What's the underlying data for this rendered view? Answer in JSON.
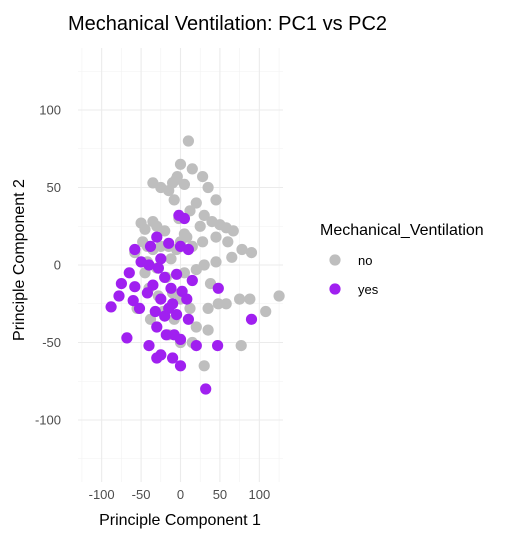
{
  "chart_data": {
    "type": "scatter",
    "title": "Mechanical Ventilation: PC1 vs PC2",
    "xlabel": "Principle Component 1",
    "ylabel": "Principle Component 2",
    "xlim": [
      -130,
      130
    ],
    "ylim": [
      -140,
      140
    ],
    "xticks": [
      -100,
      -50,
      0,
      50,
      100
    ],
    "xtick_labels": [
      "-100",
      "-50",
      "0",
      "50",
      "100"
    ],
    "yticks": [
      -100,
      -50,
      0,
      50,
      100
    ],
    "ytick_labels": [
      "-100",
      "-50",
      "0",
      "50",
      "100"
    ],
    "grid": true,
    "legend": {
      "title": "Mechanical_Ventilation",
      "position": "right"
    },
    "series": [
      {
        "name": "no",
        "color": "#bebebe",
        "points": [
          [
            10,
            80
          ],
          [
            0,
            65
          ],
          [
            -6,
            55
          ],
          [
            -10,
            53
          ],
          [
            -4,
            57
          ],
          [
            -35,
            53
          ],
          [
            -25,
            50
          ],
          [
            15,
            62
          ],
          [
            28,
            57
          ],
          [
            35,
            50
          ],
          [
            5,
            52
          ],
          [
            -15,
            48
          ],
          [
            -8,
            42
          ],
          [
            20,
            40
          ],
          [
            45,
            42
          ],
          [
            12,
            35
          ],
          [
            30,
            32
          ],
          [
            -50,
            27
          ],
          [
            -35,
            28
          ],
          [
            -2,
            30
          ],
          [
            25,
            25
          ],
          [
            40,
            28
          ],
          [
            -45,
            23
          ],
          [
            -30,
            25
          ],
          [
            -20,
            22
          ],
          [
            5,
            20
          ],
          [
            50,
            26
          ],
          [
            58,
            24
          ],
          [
            67,
            22
          ],
          [
            -48,
            15
          ],
          [
            -42,
            12
          ],
          [
            -35,
            10
          ],
          [
            -25,
            12
          ],
          [
            -15,
            12
          ],
          [
            -5,
            10
          ],
          [
            0,
            15
          ],
          [
            8,
            18
          ],
          [
            15,
            12
          ],
          [
            28,
            15
          ],
          [
            45,
            18
          ],
          [
            60,
            15
          ],
          [
            78,
            10
          ],
          [
            90,
            8
          ],
          [
            -58,
            8
          ],
          [
            -45,
            -5
          ],
          [
            -30,
            -2
          ],
          [
            -18,
            -8
          ],
          [
            5,
            -5
          ],
          [
            20,
            -3
          ],
          [
            30,
            0
          ],
          [
            45,
            2
          ],
          [
            65,
            5
          ],
          [
            -40,
            -15
          ],
          [
            -28,
            -20
          ],
          [
            -10,
            -18
          ],
          [
            0,
            -22
          ],
          [
            12,
            -28
          ],
          [
            35,
            -28
          ],
          [
            48,
            -25
          ],
          [
            58,
            -25
          ],
          [
            75,
            -22
          ],
          [
            88,
            -22
          ],
          [
            108,
            -30
          ],
          [
            125,
            -20
          ],
          [
            -55,
            -28
          ],
          [
            -38,
            -35
          ],
          [
            -22,
            -30
          ],
          [
            -8,
            -35
          ],
          [
            20,
            -40
          ],
          [
            35,
            -42
          ],
          [
            -15,
            -45
          ],
          [
            0,
            -50
          ],
          [
            15,
            -50
          ],
          [
            77,
            -52
          ],
          [
            30,
            -65
          ],
          [
            -42,
            2
          ],
          [
            -12,
            4
          ],
          [
            38,
            -12
          ]
        ]
      },
      {
        "name": "yes",
        "color": "#a020f0",
        "points": [
          [
            -2,
            32
          ],
          [
            5,
            30
          ],
          [
            -30,
            18
          ],
          [
            -15,
            14
          ],
          [
            0,
            12
          ],
          [
            10,
            10
          ],
          [
            -58,
            10
          ],
          [
            -38,
            12
          ],
          [
            -25,
            4
          ],
          [
            -40,
            0
          ],
          [
            -28,
            -2
          ],
          [
            -65,
            -5
          ],
          [
            -20,
            -8
          ],
          [
            -5,
            -6
          ],
          [
            15,
            -10
          ],
          [
            -75,
            -12
          ],
          [
            -58,
            -14
          ],
          [
            -35,
            -13
          ],
          [
            -12,
            -15
          ],
          [
            2,
            -17
          ],
          [
            -78,
            -20
          ],
          [
            -60,
            -23
          ],
          [
            -42,
            -18
          ],
          [
            -25,
            -22
          ],
          [
            -10,
            -25
          ],
          [
            48,
            -15
          ],
          [
            -88,
            -27
          ],
          [
            -52,
            -28
          ],
          [
            -32,
            -30
          ],
          [
            -15,
            -28
          ],
          [
            8,
            -22
          ],
          [
            -20,
            -33
          ],
          [
            -5,
            -32
          ],
          [
            10,
            -35
          ],
          [
            -30,
            -40
          ],
          [
            -18,
            -45
          ],
          [
            0,
            -48
          ],
          [
            20,
            -52
          ],
          [
            47,
            -52
          ],
          [
            -68,
            -47
          ],
          [
            -40,
            -52
          ],
          [
            -25,
            -58
          ],
          [
            -30,
            -60
          ],
          [
            90,
            -35
          ],
          [
            -10,
            -60
          ],
          [
            0,
            -65
          ],
          [
            32,
            -80
          ],
          [
            -50,
            2
          ],
          [
            -8,
            -45
          ]
        ]
      }
    ]
  }
}
